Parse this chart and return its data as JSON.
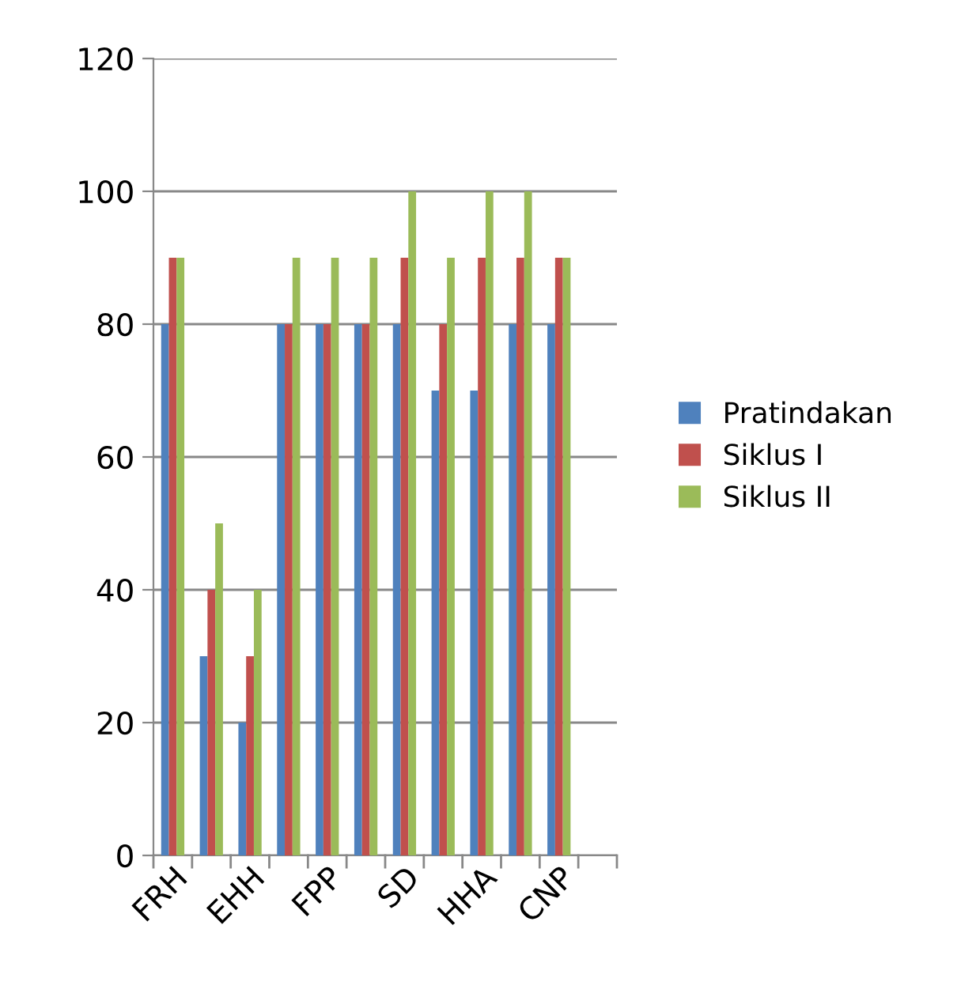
{
  "chart_data": {
    "type": "bar",
    "categories": [
      "FRH",
      null,
      "EHH",
      null,
      "FPP",
      null,
      "SD",
      null,
      "HHA",
      null,
      "CNP",
      null
    ],
    "series": [
      {
        "name": "Pratindakan",
        "color": "#4f81bd",
        "values": [
          80,
          30,
          20,
          80,
          80,
          80,
          80,
          70,
          70,
          80,
          80,
          null
        ]
      },
      {
        "name": "Siklus I",
        "color": "#c0504d",
        "values": [
          90,
          40,
          30,
          80,
          80,
          80,
          90,
          80,
          90,
          90,
          90,
          null
        ]
      },
      {
        "name": "Siklus II",
        "color": "#9bbb59",
        "values": [
          90,
          50,
          40,
          90,
          90,
          90,
          100,
          90,
          100,
          100,
          90,
          null
        ]
      }
    ],
    "ylim": [
      0,
      120
    ],
    "yticks": [
      0,
      20,
      40,
      60,
      80,
      100,
      120
    ],
    "grid": "y",
    "legend": "right"
  }
}
